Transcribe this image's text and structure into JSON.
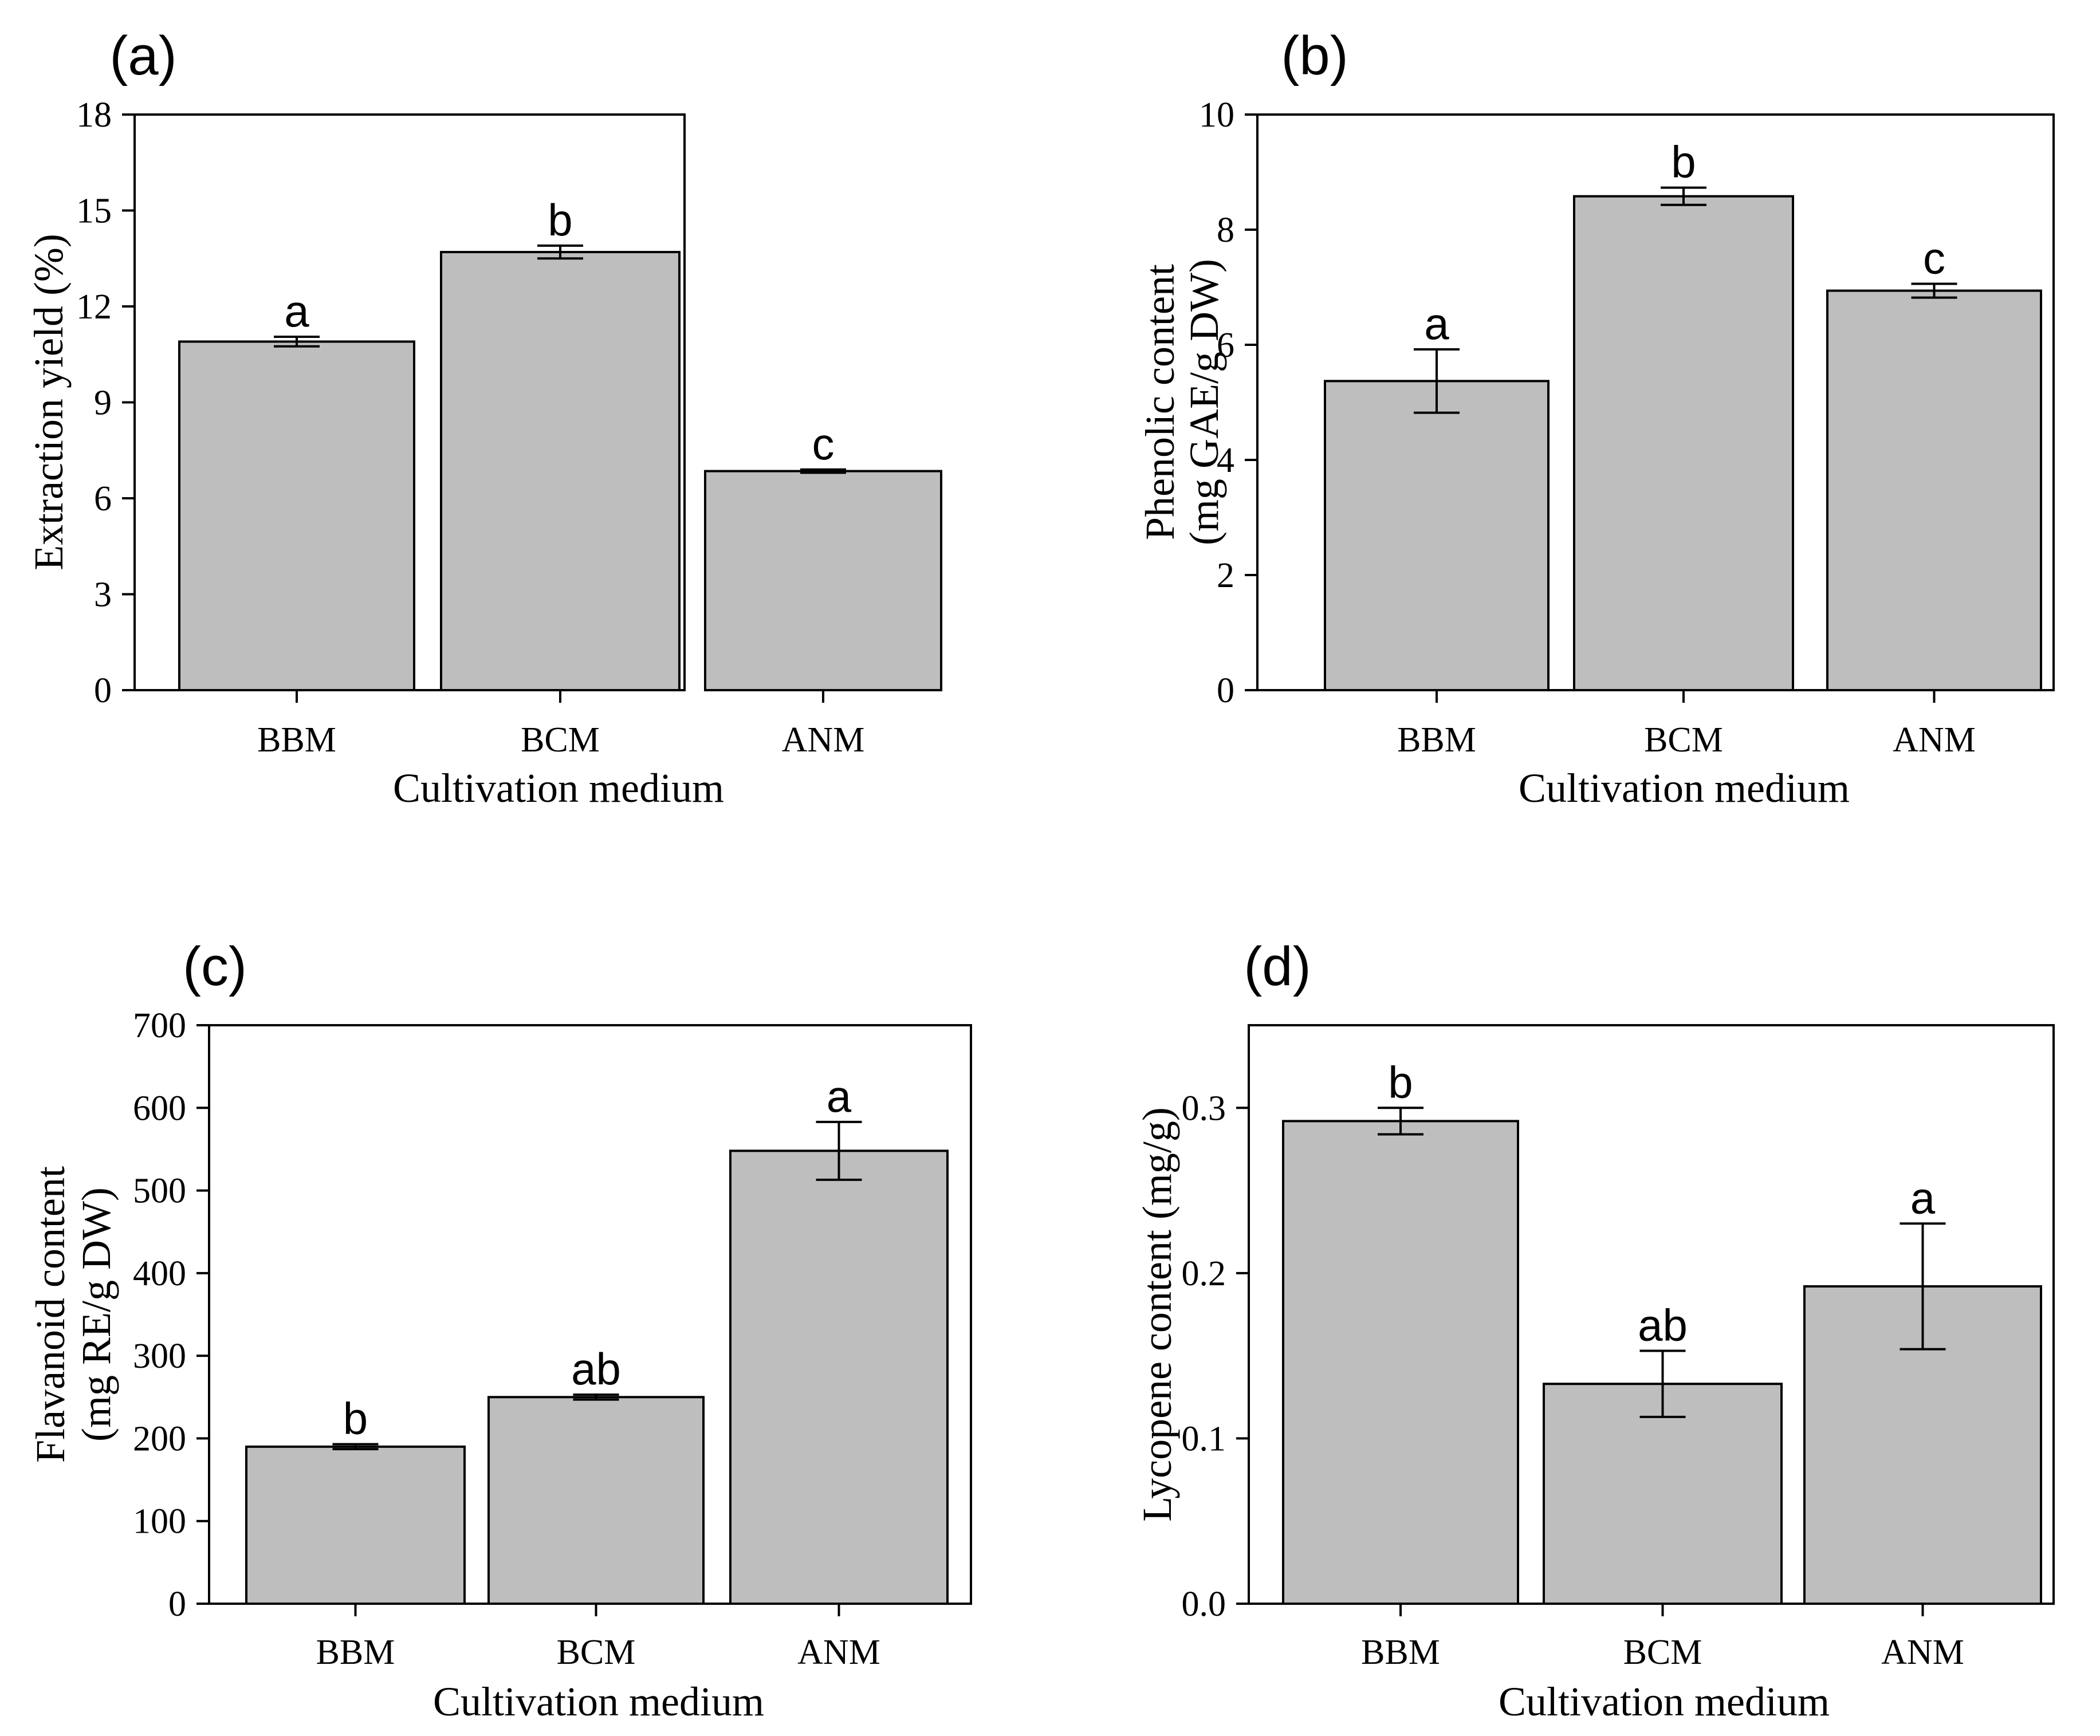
{
  "chart_data": [
    {
      "type": "bar",
      "panel": "(a)",
      "categories": [
        "BBM",
        "BCM",
        "ANM"
      ],
      "values": [
        10.9,
        13.7,
        6.85
      ],
      "errors": [
        0.15,
        0.2,
        0.05
      ],
      "significance": [
        "a",
        "b",
        "c"
      ],
      "xlabel": "Cultivation medium",
      "ylabel": [
        "Extraction yield (%)"
      ],
      "ylim": [
        0,
        18
      ],
      "yticks": [
        0,
        3,
        6,
        9,
        12,
        15,
        18
      ],
      "ytick_labels": [
        "0",
        "3",
        "6",
        "9",
        "12",
        "15",
        "18"
      ],
      "color": "#bebebe"
    },
    {
      "type": "bar",
      "panel": "(b)",
      "categories": [
        "BBM",
        "BCM",
        "ANM"
      ],
      "values": [
        5.37,
        8.58,
        6.94
      ],
      "errors": [
        0.55,
        0.15,
        0.12
      ],
      "significance": [
        "a",
        "b",
        "c"
      ],
      "xlabel": "Cultivation medium",
      "ylabel": [
        "Phenolic content",
        "(mg GAE/g DW)"
      ],
      "ylim": [
        0,
        10
      ],
      "yticks": [
        0,
        2,
        4,
        6,
        8,
        10
      ],
      "ytick_labels": [
        "0",
        "2",
        "4",
        "6",
        "8",
        "10"
      ],
      "color": "#bebebe"
    },
    {
      "type": "bar",
      "panel": "(c)",
      "categories": [
        "BBM",
        "BCM",
        "ANM"
      ],
      "values": [
        190,
        250,
        548
      ],
      "errors": [
        3,
        3,
        35
      ],
      "significance": [
        "b",
        "ab",
        "a"
      ],
      "xlabel": "Cultivation medium",
      "ylabel": [
        "Flavanoid content",
        "(mg RE/g DW)"
      ],
      "ylim": [
        0,
        700
      ],
      "yticks": [
        0,
        100,
        200,
        300,
        400,
        500,
        600,
        700
      ],
      "ytick_labels": [
        "0",
        "100",
        "200",
        "300",
        "400",
        "500",
        "600",
        "700"
      ],
      "color": "#bebebe"
    },
    {
      "type": "bar",
      "panel": "(d)",
      "categories": [
        "BBM",
        "BCM",
        "ANM"
      ],
      "values": [
        0.292,
        0.133,
        0.192
      ],
      "errors": [
        0.008,
        0.02,
        0.038
      ],
      "significance": [
        "b",
        "ab",
        "a"
      ],
      "xlabel": "Cultivation medium",
      "ylabel": [
        "Lycopene content (mg/g)"
      ],
      "ylim": [
        0,
        0.35
      ],
      "yticks": [
        0,
        0.1,
        0.2,
        0.3
      ],
      "ytick_labels": [
        "0.0",
        "0.1",
        "0.2",
        "0.3"
      ],
      "color": "#bebebe"
    }
  ]
}
